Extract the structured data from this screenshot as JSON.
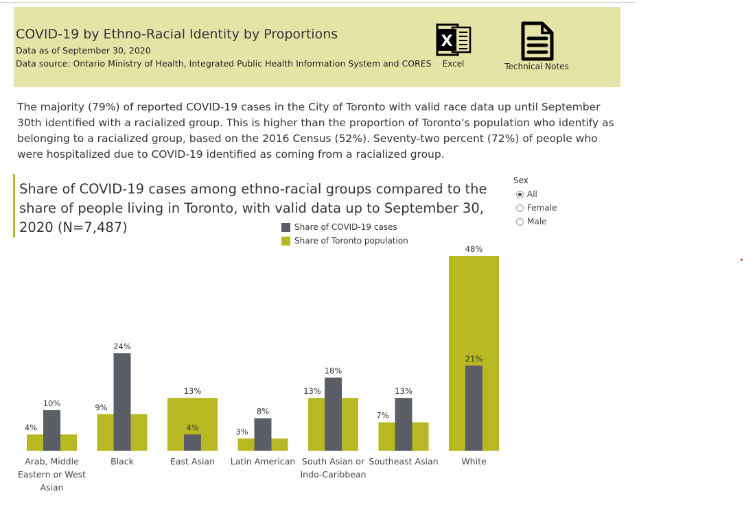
{
  "header": {
    "title": "COVID-19 by Ethno-Racial Identity by Proportions",
    "data_as_of": "Data as of September 30, 2020",
    "data_source": "Data source: Ontario Ministry of Health, Integrated Public Health Information System and CORES",
    "excel_label": "Excel",
    "excel_icon": "excel-icon",
    "notes_label": "Technical Notes",
    "notes_icon": "document-icon",
    "background": "#e4e4a6"
  },
  "summary": "The majority (79%) of reported COVID-19 cases in the City of Toronto with valid race data up until September 30th identified with a racialized group. This is higher than the proportion of Toronto’s population who identify as belonging to a racialized group, based on the 2016 Census (52%). Seventy-two percent (72%) of people who were hospitalized due to COVID-19 identified as coming from a racialized group.",
  "filter": {
    "title": "Sex",
    "options": [
      "All",
      "Female",
      "Male"
    ],
    "selected": "All"
  },
  "chart_data": {
    "type": "bar",
    "title": "Share of COVID-19 cases among ethno-racial groups compared to the share of people living in Toronto, with valid data up to September 30, 2020 (N=7,487)",
    "categories": [
      [
        "Arab, Middle",
        "Eastern or West",
        "Asian"
      ],
      [
        "Black"
      ],
      [
        "East Asian"
      ],
      [
        "Latin American"
      ],
      [
        "South Asian or",
        "Indo-Caribbean"
      ],
      [
        "Southeast Asian"
      ],
      [
        "White"
      ]
    ],
    "series": [
      {
        "name": "Share of Toronto population",
        "color": "#b7b822",
        "values": [
          4,
          9,
          13,
          3,
          13,
          7,
          48
        ],
        "labels": [
          "4%",
          "9%",
          "13%",
          "3%",
          "13%",
          "7%",
          "48%"
        ]
      },
      {
        "name": "Share of COVID-19 cases",
        "color": "#5b5e66",
        "values": [
          10,
          24,
          4,
          8,
          18,
          13,
          21
        ],
        "labels": [
          "10%",
          "24%",
          "4%",
          "8%",
          "18%",
          "13%",
          "21%"
        ]
      }
    ],
    "legend_order": [
      "Share of COVID-19 cases",
      "Share of Toronto population"
    ],
    "legend_position": "top",
    "ylim": [
      0,
      48
    ],
    "grid": false,
    "xlabel": "",
    "ylabel": ""
  }
}
